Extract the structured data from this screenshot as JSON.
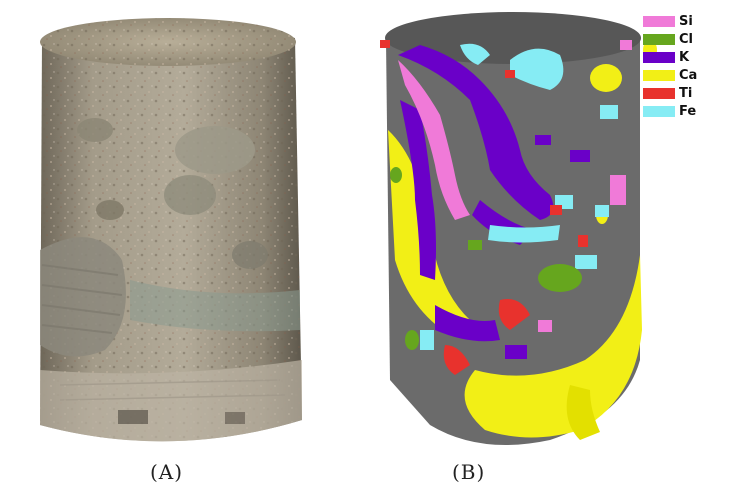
{
  "captions": {
    "a": "(A)",
    "b": "(B)"
  },
  "legend": [
    {
      "label": "Si",
      "color": "#f07ad8"
    },
    {
      "label": "Cl",
      "color": "#66a61e"
    },
    {
      "label": "K",
      "color": "#6a00c8"
    },
    {
      "label": "Ca",
      "color": "#f2ef16"
    },
    {
      "label": "Ti",
      "color": "#e8322d"
    },
    {
      "label": "Fe",
      "color": "#86ecf4"
    }
  ],
  "colors": {
    "core_gray": "#6b6b6b",
    "core_top": "#575757",
    "rock_base": "#9a9282"
  }
}
